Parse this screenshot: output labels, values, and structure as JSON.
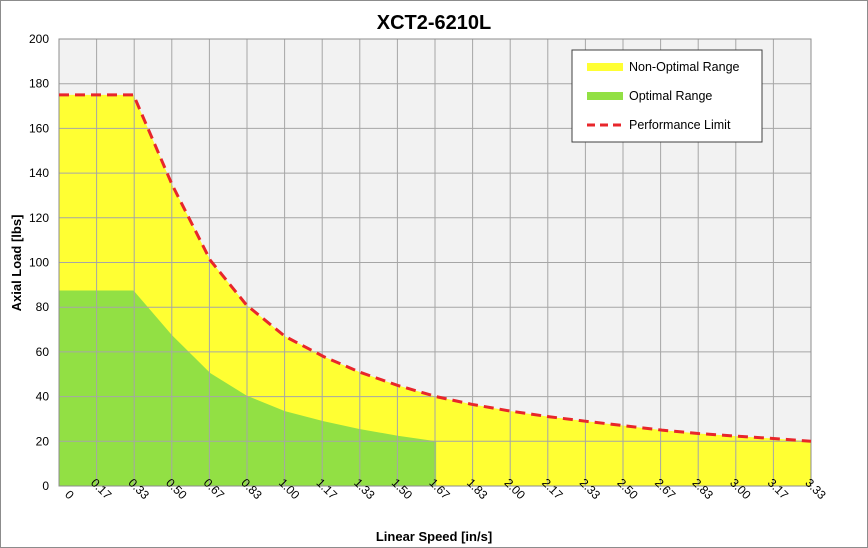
{
  "chart_data": {
    "type": "area",
    "title": "XCT2-6210L",
    "xlabel": "Linear Speed [in/s]",
    "ylabel": "Axial Load [lbs]",
    "x_tick_labels": [
      "0",
      "0.17",
      "0.33",
      "0.50",
      "0.67",
      "0.83",
      "1.00",
      "1.17",
      "1.33",
      "1.50",
      "1.67",
      "1.83",
      "2.00",
      "2.17",
      "2.33",
      "2.50",
      "2.67",
      "2.83",
      "3.00",
      "3.17",
      "3.33"
    ],
    "xlim": [
      0,
      3.33
    ],
    "ylim": [
      0,
      200
    ],
    "y_ticks": [
      0,
      20,
      40,
      60,
      80,
      100,
      120,
      140,
      160,
      180,
      200
    ],
    "grid": true,
    "legend_position": "top-right",
    "colors": {
      "non_optimal": "#ffff33",
      "optimal": "#92e044",
      "limit": "#e8262b",
      "plot_bg": "#f2f2f2",
      "grid": "#a6a6a6"
    },
    "series": [
      {
        "name": "Non-Optimal Range",
        "type": "area",
        "x": [
          0,
          0.17,
          0.33,
          0.5,
          0.67,
          0.83,
          1.0,
          1.17,
          1.33,
          1.5,
          1.67,
          1.83,
          2.0,
          2.17,
          2.33,
          2.5,
          2.67,
          2.83,
          3.0,
          3.17,
          3.33
        ],
        "y": [
          175,
          175,
          175,
          135,
          101,
          81,
          67,
          58,
          51,
          45,
          40,
          36.5,
          33.5,
          31,
          29,
          27,
          25,
          23.5,
          22.3,
          21.2,
          20
        ]
      },
      {
        "name": "Optimal Range",
        "type": "area",
        "x": [
          0,
          0.17,
          0.33,
          0.5,
          0.67,
          0.83,
          1.0,
          1.17,
          1.33,
          1.5,
          1.67
        ],
        "y": [
          87.5,
          87.5,
          87.5,
          67.5,
          50.5,
          40.5,
          33.5,
          29,
          25.5,
          22.5,
          20
        ]
      },
      {
        "name": "Performance Limit",
        "type": "line",
        "x": [
          0,
          0.17,
          0.33,
          0.5,
          0.67,
          0.83,
          1.0,
          1.17,
          1.33,
          1.5,
          1.67,
          1.83,
          2.0,
          2.17,
          2.33,
          2.5,
          2.67,
          2.83,
          3.0,
          3.17,
          3.33
        ],
        "y": [
          175,
          175,
          175,
          135,
          101,
          81,
          67,
          58,
          51,
          45,
          40,
          36.5,
          33.5,
          31,
          29,
          27,
          25,
          23.5,
          22.3,
          21.2,
          20
        ]
      }
    ]
  }
}
